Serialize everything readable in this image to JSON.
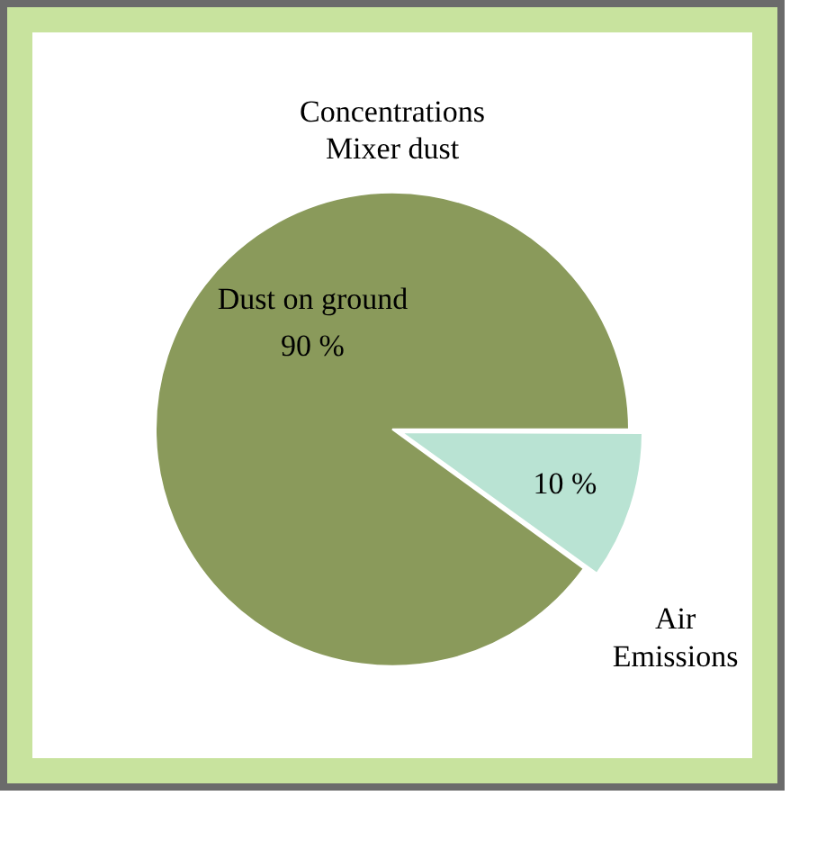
{
  "chart_data": {
    "type": "pie",
    "title": "Concentrations\nMixer dust",
    "categories": [
      "Dust on ground",
      "Air Emissions"
    ],
    "values": [
      90,
      10
    ],
    "colors": [
      "#8a9a5b",
      "#b9e3d3"
    ],
    "value_labels": [
      "90 %",
      "10 %"
    ]
  }
}
